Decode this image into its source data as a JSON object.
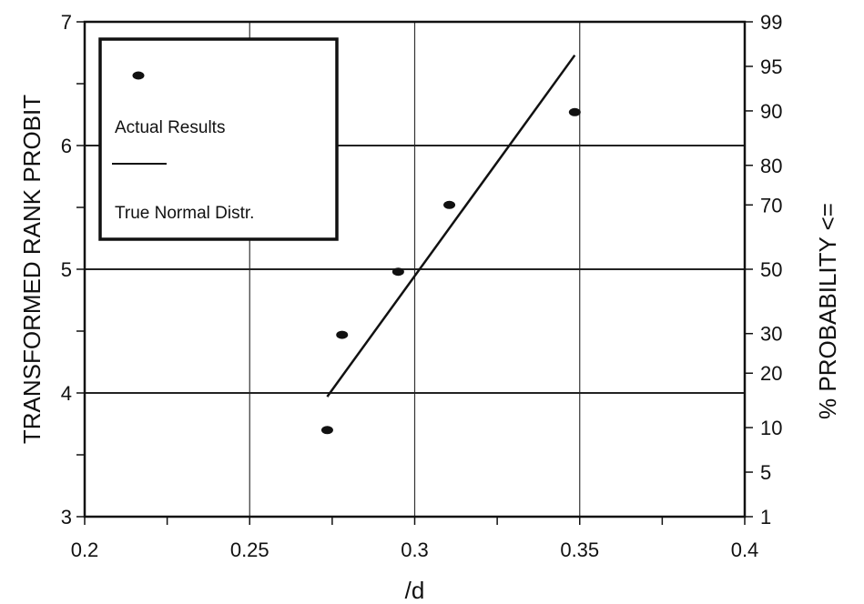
{
  "chart_data": {
    "type": "scatter",
    "title": "",
    "xlabel": "/d",
    "ylabel": "TRANSFORMED RANK PROBIT",
    "y2label": "% PROBABILITY <=",
    "xlim": [
      0.2,
      0.4
    ],
    "ylim": [
      3,
      7
    ],
    "x_ticks": [
      0.2,
      0.25,
      0.3,
      0.35,
      0.4
    ],
    "x_tick_labels": [
      "0.2",
      "0.25",
      "0.3",
      "0.35",
      "0.4"
    ],
    "y_ticks": [
      3,
      4,
      5,
      6,
      7
    ],
    "y_tick_labels": [
      "3",
      "4",
      "5",
      "6",
      "7"
    ],
    "y2_ticks": [
      {
        "label": "1",
        "probit": 2.67
      },
      {
        "label": "5",
        "probit": 3.36
      },
      {
        "label": "10",
        "probit": 3.72
      },
      {
        "label": "20",
        "probit": 4.16
      },
      {
        "label": "30",
        "probit": 4.48
      },
      {
        "label": "50",
        "probit": 5.0
      },
      {
        "label": "70",
        "probit": 5.52
      },
      {
        "label": "80",
        "probit": 5.84
      },
      {
        "label": "90",
        "probit": 6.28
      },
      {
        "label": "95",
        "probit": 6.64
      },
      {
        "label": "99",
        "probit": 7.33
      }
    ],
    "grid": true,
    "legend_position": "top-left",
    "series": [
      {
        "name": "Actual Results",
        "kind": "scatter",
        "x": [
          0.2735,
          0.278,
          0.295,
          0.3105,
          0.3485
        ],
        "y": [
          3.7,
          4.47,
          4.98,
          5.52,
          6.27
        ]
      },
      {
        "name": "True Normal Distr.",
        "kind": "line",
        "x": [
          0.2735,
          0.3485
        ],
        "y": [
          3.97,
          6.73
        ]
      }
    ]
  }
}
